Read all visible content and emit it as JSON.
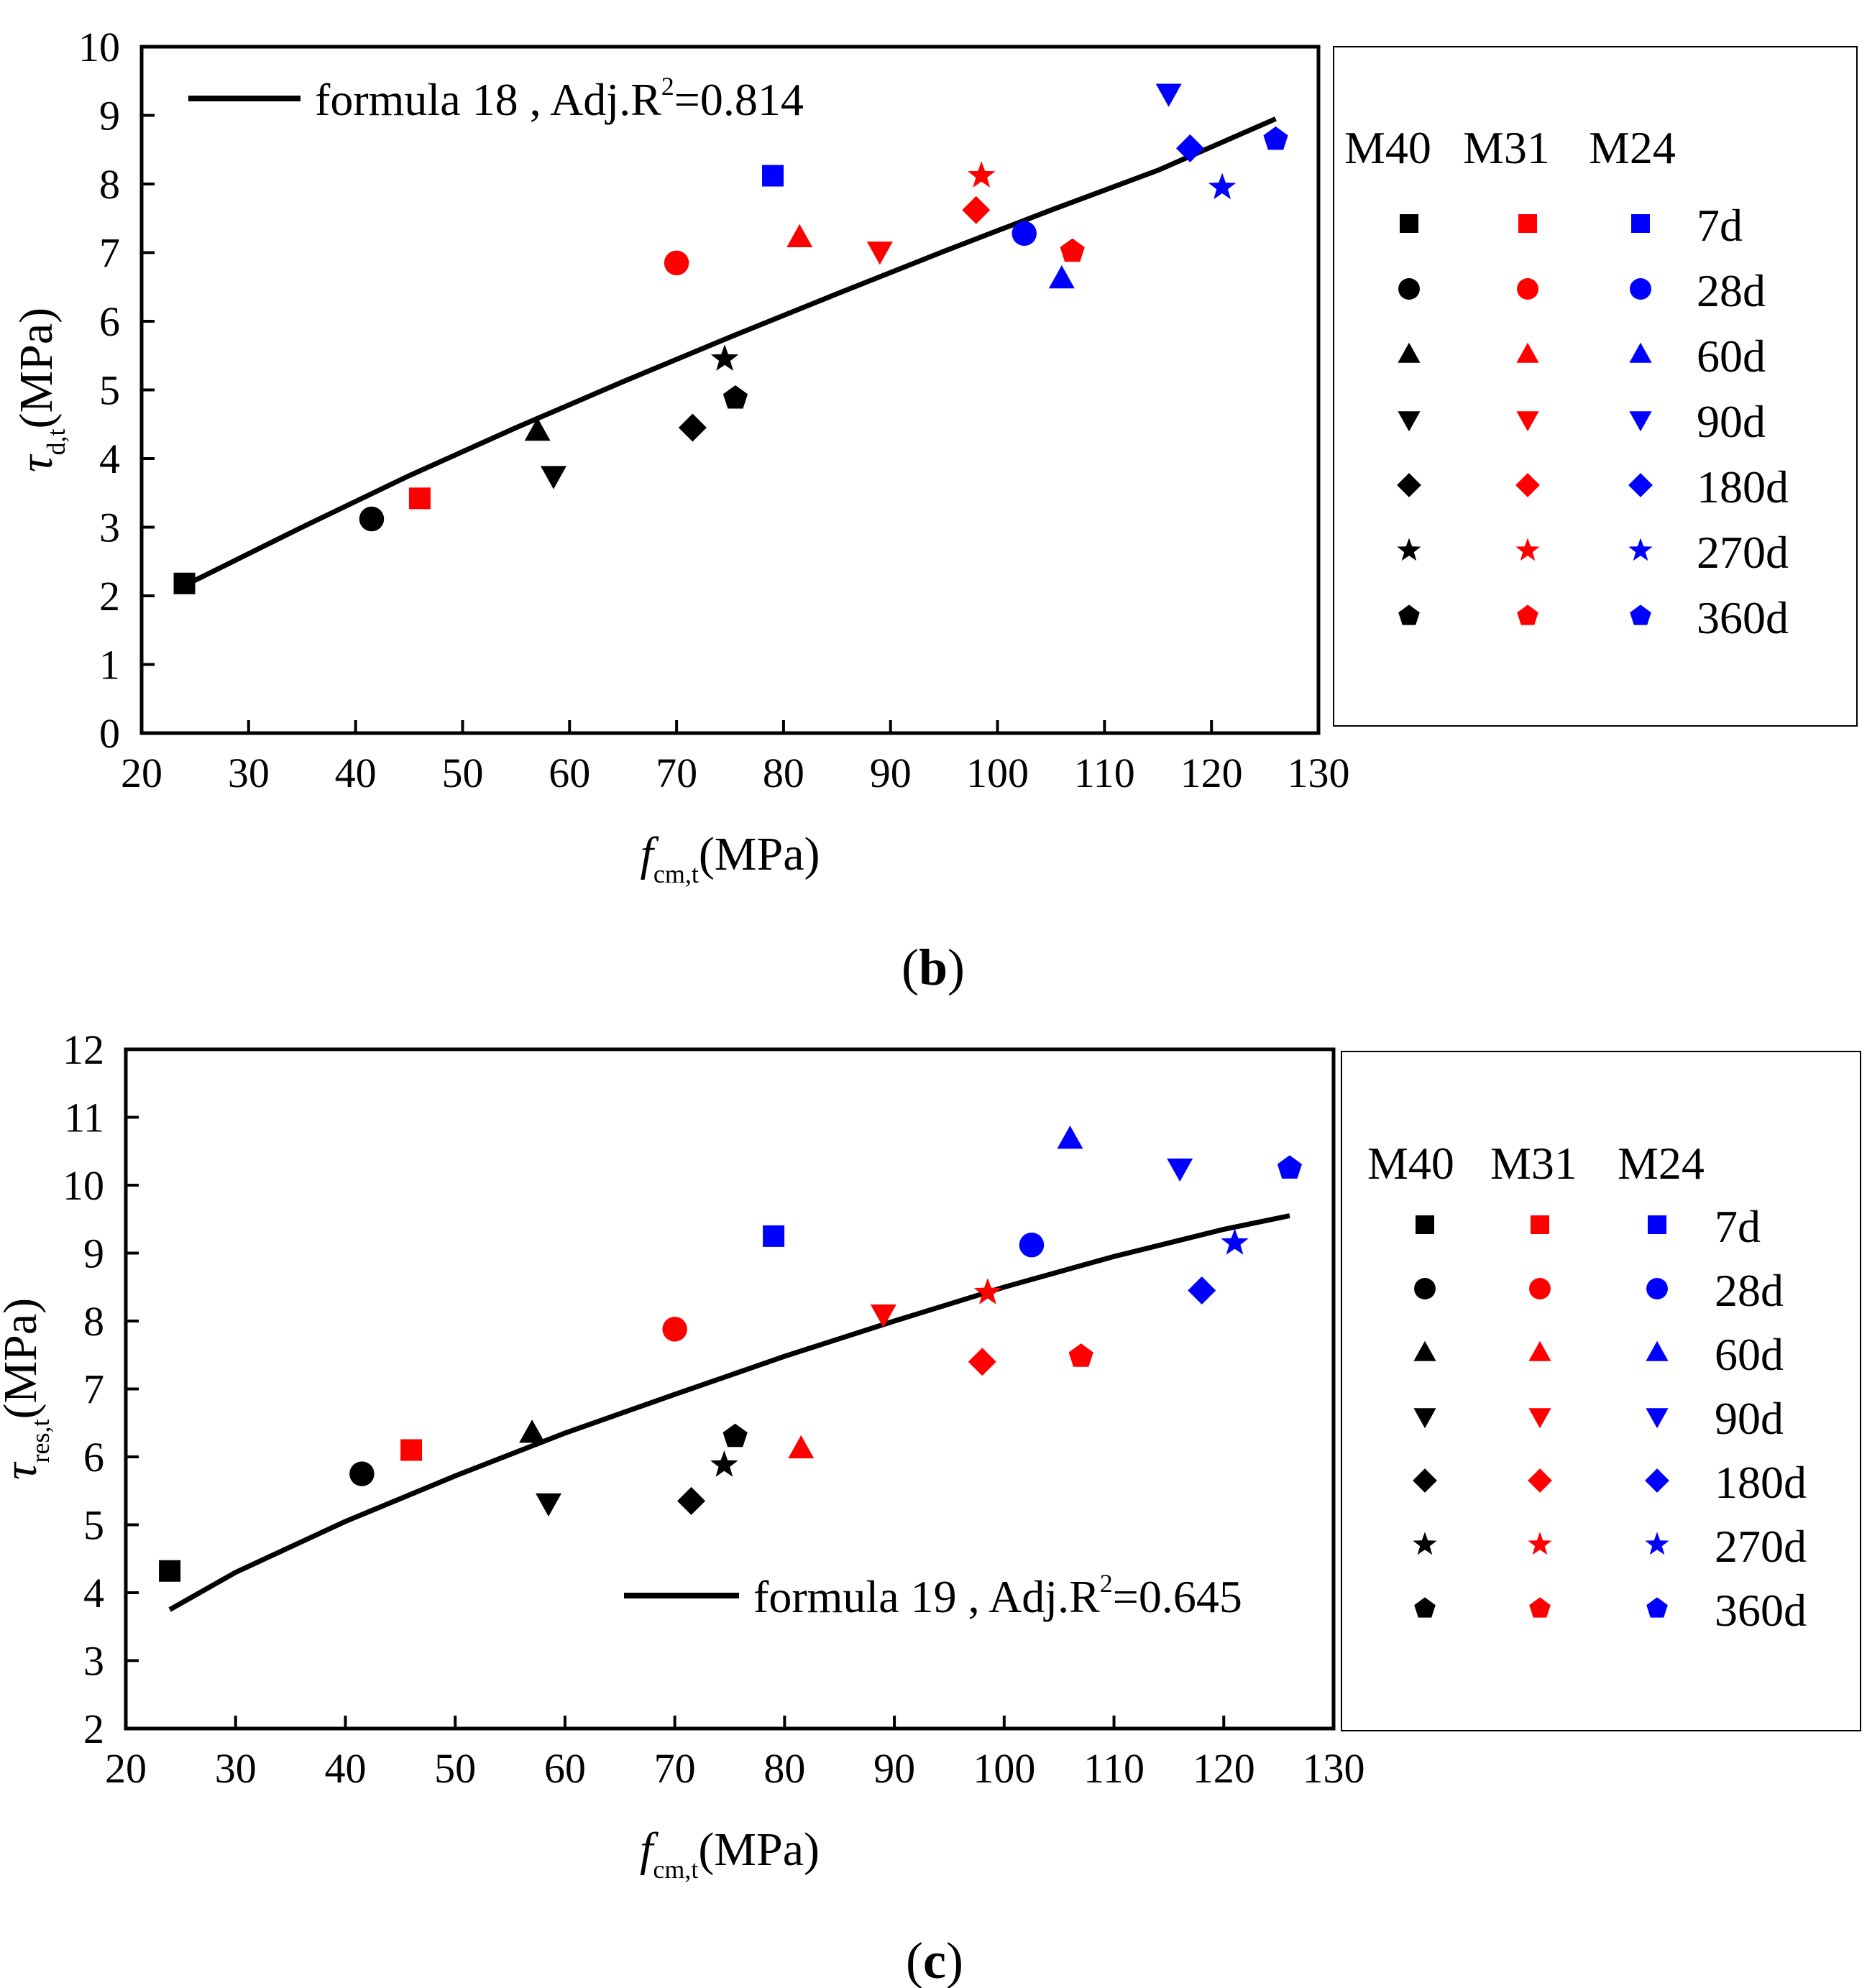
{
  "colors": {
    "M40": "#000000",
    "M31": "#ff0000",
    "M24": "#0000ff"
  },
  "legend": {
    "headers": [
      "M40",
      "M31",
      "M24"
    ],
    "ages": [
      "7d",
      "28d",
      "60d",
      "90d",
      "180d",
      "270d",
      "360d"
    ],
    "markers": [
      "square",
      "circle",
      "triangle-up",
      "triangle-down",
      "diamond",
      "star",
      "pentagon"
    ]
  },
  "chart_data": [
    {
      "type": "scatter",
      "caption": "(b)",
      "caption_letter": "b",
      "xlabel": {
        "main": "f",
        "sub": "cm,t",
        "unit": "(MPa)"
      },
      "ylabel": {
        "main": "τ",
        "sub": "d,t",
        "unit": "(MPa)"
      },
      "xlim": [
        20,
        130
      ],
      "ylim": [
        0,
        10
      ],
      "xticks": [
        20,
        30,
        40,
        50,
        60,
        70,
        80,
        90,
        100,
        110,
        120,
        130
      ],
      "yticks": [
        0,
        1,
        2,
        3,
        4,
        5,
        6,
        7,
        8,
        9,
        10
      ],
      "fit_label": {
        "text": "formula 18 , Adj.R",
        "sup": "2",
        "value": "=0.814"
      },
      "fit_line": {
        "x": [
          24,
          35,
          45,
          55,
          65,
          75,
          85,
          95,
          105,
          115,
          126
        ],
        "y": [
          2.15,
          3.0,
          3.75,
          4.45,
          5.12,
          5.77,
          6.4,
          7.02,
          7.62,
          8.2,
          8.95
        ]
      },
      "series": [
        {
          "name": "M40",
          "points": [
            [
              24,
              2.18
            ],
            [
              41.5,
              3.12
            ],
            [
              57,
              4.4
            ],
            [
              58.5,
              3.75
            ],
            [
              71.5,
              4.45
            ],
            [
              74.5,
              5.45
            ],
            [
              75.5,
              4.88
            ]
          ]
        },
        {
          "name": "M31",
          "points": [
            [
              46,
              3.42
            ],
            [
              70,
              6.85
            ],
            [
              81.5,
              7.22
            ],
            [
              89,
              7.02
            ],
            [
              98,
              7.62
            ],
            [
              98.5,
              8.12
            ],
            [
              107,
              7.02
            ]
          ]
        },
        {
          "name": "M24",
          "points": [
            [
              79,
              8.12
            ],
            [
              102.5,
              7.28
            ],
            [
              106,
              6.62
            ],
            [
              116,
              9.32
            ],
            [
              118,
              8.52
            ],
            [
              121,
              7.95
            ],
            [
              126,
              8.65
            ]
          ]
        }
      ]
    },
    {
      "type": "scatter",
      "caption": "(c)",
      "caption_letter": "c",
      "xlabel": {
        "main": "f",
        "sub": "cm,t",
        "unit": "(MPa)"
      },
      "ylabel": {
        "main": "τ",
        "sub": "res,t",
        "unit": "(MPa)"
      },
      "xlim": [
        20,
        130
      ],
      "ylim": [
        2,
        12
      ],
      "xticks": [
        20,
        30,
        40,
        50,
        60,
        70,
        80,
        90,
        100,
        110,
        120,
        130
      ],
      "yticks": [
        2,
        3,
        4,
        5,
        6,
        7,
        8,
        9,
        10,
        11,
        12
      ],
      "fit_label": {
        "text": "formula 19 , Adj.R",
        "sup": "2",
        "value": "=0.645"
      },
      "fit_line": {
        "x": [
          24,
          30,
          40,
          50,
          60,
          70,
          80,
          90,
          100,
          110,
          120,
          126
        ],
        "y": [
          3.75,
          4.3,
          5.05,
          5.72,
          6.35,
          6.92,
          7.48,
          8.0,
          8.5,
          8.95,
          9.35,
          9.55
        ]
      },
      "series": [
        {
          "name": "M40",
          "points": [
            [
              24,
              4.32
            ],
            [
              41.5,
              5.75
            ],
            [
              57,
              6.35
            ],
            [
              58.5,
              5.32
            ],
            [
              71.5,
              5.35
            ],
            [
              74.5,
              5.88
            ],
            [
              75.5,
              6.3
            ]
          ]
        },
        {
          "name": "M31",
          "points": [
            [
              46,
              6.1
            ],
            [
              70,
              7.88
            ],
            [
              81.5,
              6.12
            ],
            [
              89,
              8.1
            ],
            [
              98,
              7.4
            ],
            [
              98.5,
              8.42
            ],
            [
              107,
              7.48
            ]
          ]
        },
        {
          "name": "M24",
          "points": [
            [
              79,
              9.25
            ],
            [
              102.5,
              9.12
            ],
            [
              106,
              10.68
            ],
            [
              116,
              10.25
            ],
            [
              118,
              8.45
            ],
            [
              121,
              9.15
            ],
            [
              126,
              10.25
            ]
          ]
        }
      ]
    }
  ]
}
